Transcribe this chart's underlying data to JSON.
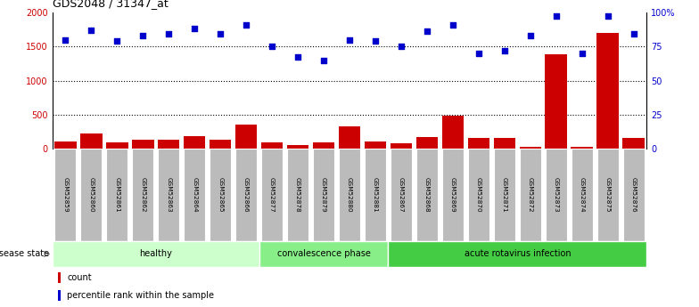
{
  "title": "GDS2048 / 31347_at",
  "samples": [
    "GSM52859",
    "GSM52860",
    "GSM52861",
    "GSM52862",
    "GSM52863",
    "GSM52864",
    "GSM52865",
    "GSM52866",
    "GSM52877",
    "GSM52878",
    "GSM52879",
    "GSM52880",
    "GSM52881",
    "GSM52867",
    "GSM52868",
    "GSM52869",
    "GSM52870",
    "GSM52871",
    "GSM52872",
    "GSM52873",
    "GSM52874",
    "GSM52875",
    "GSM52876"
  ],
  "count_values": [
    110,
    220,
    100,
    140,
    130,
    190,
    130,
    350,
    90,
    55,
    100,
    330,
    110,
    80,
    170,
    490,
    160,
    165,
    30,
    1380,
    35,
    1700,
    165
  ],
  "percentile_values": [
    80,
    87,
    79,
    83,
    84,
    88,
    84,
    91,
    75,
    67,
    65,
    80,
    79,
    75,
    86,
    91,
    70,
    72,
    83,
    97,
    70,
    97,
    84
  ],
  "groups": [
    {
      "label": "healthy",
      "start": 0,
      "end": 8,
      "color": "#ccffcc"
    },
    {
      "label": "convalescence phase",
      "start": 8,
      "end": 13,
      "color": "#88ee88"
    },
    {
      "label": "acute rotavirus infection",
      "start": 13,
      "end": 23,
      "color": "#44cc44"
    }
  ],
  "ylim_left": [
    0,
    2000
  ],
  "ylim_right": [
    0,
    100
  ],
  "yticks_left": [
    0,
    500,
    1000,
    1500,
    2000
  ],
  "ytick_labels_left": [
    "0",
    "500",
    "1000",
    "1500",
    "2000"
  ],
  "yticks_right": [
    0,
    25,
    50,
    75,
    100
  ],
  "ytick_labels_right": [
    "0",
    "25",
    "50",
    "75",
    "100%"
  ],
  "bar_color": "#cc0000",
  "dot_color": "#0000cc",
  "grid_color": "#000000",
  "axis_label_color_left": "#cc0000",
  "axis_label_color_right": "#0000cc",
  "background_plot": "#ffffff",
  "background_sample": "#bbbbbb",
  "legend_count_label": "count",
  "legend_percentile_label": "percentile rank within the sample",
  "disease_state_label": "disease state"
}
